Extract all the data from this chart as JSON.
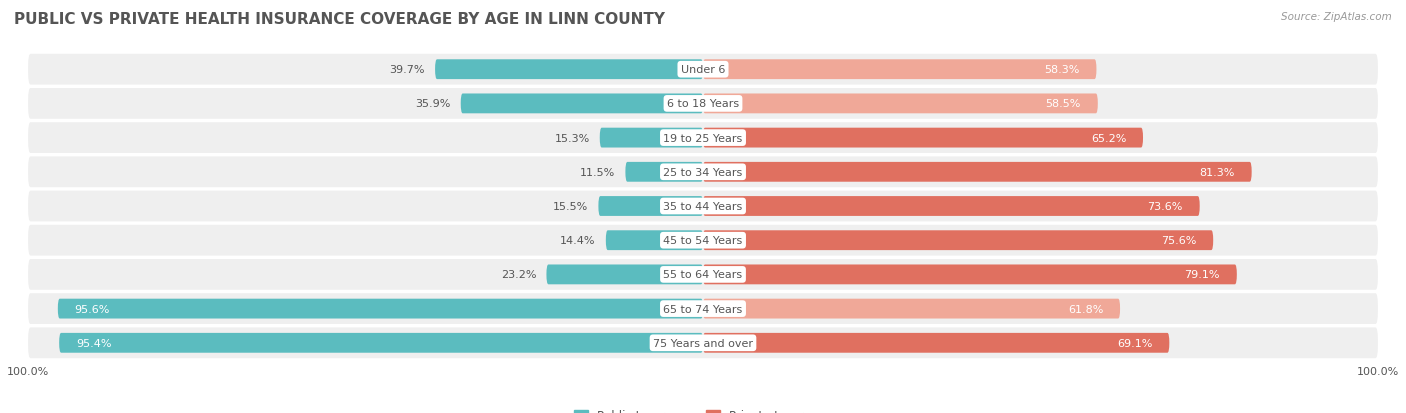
{
  "title": "PUBLIC VS PRIVATE HEALTH INSURANCE COVERAGE BY AGE IN LINN COUNTY",
  "source": "Source: ZipAtlas.com",
  "categories": [
    "Under 6",
    "6 to 18 Years",
    "19 to 25 Years",
    "25 to 34 Years",
    "35 to 44 Years",
    "45 to 54 Years",
    "55 to 64 Years",
    "65 to 74 Years",
    "75 Years and over"
  ],
  "public_values": [
    39.7,
    35.9,
    15.3,
    11.5,
    15.5,
    14.4,
    23.2,
    95.6,
    95.4
  ],
  "private_values": [
    58.3,
    58.5,
    65.2,
    81.3,
    73.6,
    75.6,
    79.1,
    61.8,
    69.1
  ],
  "public_color": "#5bbcbf",
  "private_color_dark": "#e07060",
  "private_color_light": "#f0a898",
  "private_dark_threshold": 65.0,
  "public_label": "Public Insurance",
  "private_label": "Private Insurance",
  "row_bg_color": "#efefef",
  "title_fontsize": 11,
  "label_fontsize": 8,
  "value_fontsize": 8,
  "max_value": 100.0,
  "background_color": "#ffffff",
  "title_color": "#555555",
  "text_dark": "#555555",
  "text_white": "#ffffff"
}
